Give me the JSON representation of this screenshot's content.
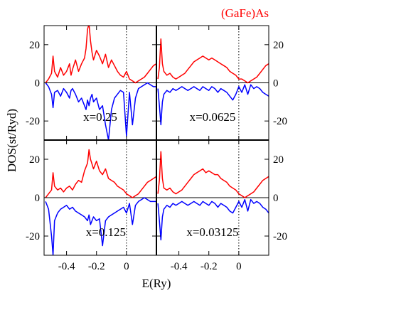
{
  "chart_data": {
    "type": "line",
    "title": "(GaFe)As",
    "title_color": "#ff0000",
    "xlabel": "E(Ry)",
    "ylabel": "DOS(st/Ryd)",
    "xlim": [
      -0.55,
      0.2
    ],
    "ylim": [
      -30,
      30
    ],
    "x_ticks": [
      -0.4,
      -0.2,
      0
    ],
    "x_tick_labels": [
      "-0.4",
      "-0.2",
      "0"
    ],
    "y_ticks_left": [
      20,
      0,
      -20
    ],
    "y_tick_labels_left": [
      "20",
      "0",
      "-20"
    ],
    "y_ticks_right": [
      20,
      0,
      -20
    ],
    "y_tick_labels_right": [
      "20",
      "0",
      "-20"
    ],
    "fermi_level": 0,
    "grid": false,
    "series_colors": {
      "up": "#ff0000",
      "down": "#0000ff"
    },
    "panels": [
      {
        "label": "x=0.25",
        "x": [
          -0.54,
          -0.52,
          -0.5,
          -0.49,
          -0.48,
          -0.46,
          -0.44,
          -0.42,
          -0.4,
          -0.38,
          -0.37,
          -0.36,
          -0.34,
          -0.32,
          -0.3,
          -0.28,
          -0.27,
          -0.26,
          -0.25,
          -0.24,
          -0.23,
          -0.22,
          -0.2,
          -0.18,
          -0.16,
          -0.14,
          -0.12,
          -0.1,
          -0.08,
          -0.06,
          -0.04,
          -0.02,
          0,
          0.02,
          0.04,
          0.06,
          0.08,
          0.1,
          0.12,
          0.14,
          0.16,
          0.18,
          0.2
        ],
        "up": [
          0,
          2,
          5,
          14,
          6,
          3,
          8,
          4,
          6,
          10,
          4,
          7,
          12,
          6,
          10,
          13,
          18,
          28,
          31,
          22,
          16,
          12,
          17,
          14,
          10,
          15,
          8,
          12,
          9,
          6,
          4,
          3,
          6,
          2,
          1,
          0,
          1,
          2,
          3,
          5,
          7,
          9,
          10
        ],
        "down": [
          0,
          -2,
          -6,
          -13,
          -5,
          -4,
          -7,
          -3,
          -5,
          -8,
          -4,
          -3,
          -6,
          -10,
          -8,
          -12,
          -14,
          -9,
          -12,
          -8,
          -6,
          -10,
          -8,
          -14,
          -12,
          -22,
          -30,
          -14,
          -8,
          -6,
          -4,
          -5,
          -28,
          -5,
          -22,
          -8,
          -3,
          -2,
          -1,
          0,
          -1,
          -2,
          -2
        ]
      },
      {
        "label": "x=0.0625",
        "x": [
          -0.54,
          -0.53,
          -0.52,
          -0.51,
          -0.5,
          -0.48,
          -0.46,
          -0.44,
          -0.42,
          -0.4,
          -0.38,
          -0.36,
          -0.34,
          -0.32,
          -0.3,
          -0.28,
          -0.26,
          -0.24,
          -0.22,
          -0.2,
          -0.18,
          -0.16,
          -0.14,
          -0.12,
          -0.1,
          -0.08,
          -0.06,
          -0.04,
          -0.02,
          0,
          0.02,
          0.04,
          0.06,
          0.08,
          0.1,
          0.12,
          0.14,
          0.16,
          0.18,
          0.2
        ],
        "up": [
          2,
          8,
          23,
          10,
          6,
          4,
          5,
          3,
          2,
          3,
          4,
          5,
          7,
          9,
          11,
          12,
          13,
          14,
          13,
          12,
          13,
          12,
          11,
          10,
          9,
          8,
          6,
          5,
          4,
          2,
          2,
          1,
          0,
          1,
          2,
          3,
          5,
          7,
          9,
          10
        ],
        "down": [
          -3,
          -12,
          -22,
          -10,
          -6,
          -4,
          -5,
          -3,
          -4,
          -3,
          -2,
          -3,
          -4,
          -3,
          -2,
          -3,
          -4,
          -2,
          -3,
          -4,
          -2,
          -3,
          -5,
          -3,
          -4,
          -5,
          -7,
          -9,
          -6,
          -2,
          -5,
          -1,
          -6,
          -1,
          -3,
          -2,
          -3,
          -5,
          -6,
          -7
        ]
      },
      {
        "label": "x=0.125",
        "x": [
          -0.54,
          -0.52,
          -0.5,
          -0.49,
          -0.48,
          -0.46,
          -0.44,
          -0.42,
          -0.4,
          -0.38,
          -0.36,
          -0.34,
          -0.32,
          -0.3,
          -0.28,
          -0.26,
          -0.25,
          -0.24,
          -0.22,
          -0.2,
          -0.18,
          -0.16,
          -0.14,
          -0.12,
          -0.1,
          -0.08,
          -0.06,
          -0.04,
          -0.02,
          0,
          0.02,
          0.04,
          0.06,
          0.08,
          0.1,
          0.12,
          0.14,
          0.16,
          0.18,
          0.2
        ],
        "up": [
          0,
          2,
          4,
          13,
          6,
          4,
          5,
          3,
          5,
          6,
          4,
          7,
          9,
          8,
          14,
          18,
          25,
          20,
          15,
          19,
          14,
          12,
          15,
          10,
          9,
          8,
          6,
          5,
          4,
          2,
          1,
          0,
          1,
          2,
          4,
          6,
          8,
          9,
          10,
          11
        ],
        "down": [
          -2,
          -6,
          -20,
          -30,
          -12,
          -8,
          -6,
          -5,
          -4,
          -6,
          -5,
          -7,
          -8,
          -9,
          -10,
          -12,
          -9,
          -14,
          -10,
          -12,
          -11,
          -25,
          -12,
          -10,
          -9,
          -8,
          -7,
          -6,
          -5,
          -8,
          -3,
          -14,
          -4,
          -2,
          -1,
          0,
          -1,
          -2,
          -2,
          -2
        ]
      },
      {
        "label": "x=0.03125",
        "x": [
          -0.54,
          -0.53,
          -0.52,
          -0.51,
          -0.5,
          -0.48,
          -0.46,
          -0.44,
          -0.42,
          -0.4,
          -0.38,
          -0.36,
          -0.34,
          -0.32,
          -0.3,
          -0.28,
          -0.26,
          -0.24,
          -0.22,
          -0.2,
          -0.18,
          -0.16,
          -0.14,
          -0.12,
          -0.1,
          -0.08,
          -0.06,
          -0.04,
          -0.02,
          0,
          0.02,
          0.04,
          0.06,
          0.08,
          0.1,
          0.12,
          0.14,
          0.16,
          0.18,
          0.2
        ],
        "up": [
          2,
          9,
          24,
          10,
          5,
          4,
          5,
          3,
          2,
          3,
          4,
          6,
          8,
          10,
          12,
          13,
          14,
          15,
          13,
          14,
          13,
          12,
          12,
          10,
          9,
          8,
          6,
          5,
          4,
          2,
          1,
          0,
          1,
          2,
          3,
          5,
          7,
          9,
          10,
          11
        ],
        "down": [
          -3,
          -12,
          -22,
          -10,
          -6,
          -4,
          -5,
          -3,
          -4,
          -3,
          -2,
          -3,
          -4,
          -3,
          -2,
          -3,
          -4,
          -2,
          -3,
          -4,
          -2,
          -3,
          -5,
          -3,
          -4,
          -5,
          -7,
          -8,
          -5,
          -2,
          -5,
          -1,
          -7,
          -1,
          -3,
          -2,
          -3,
          -5,
          -6,
          -8
        ]
      }
    ]
  }
}
